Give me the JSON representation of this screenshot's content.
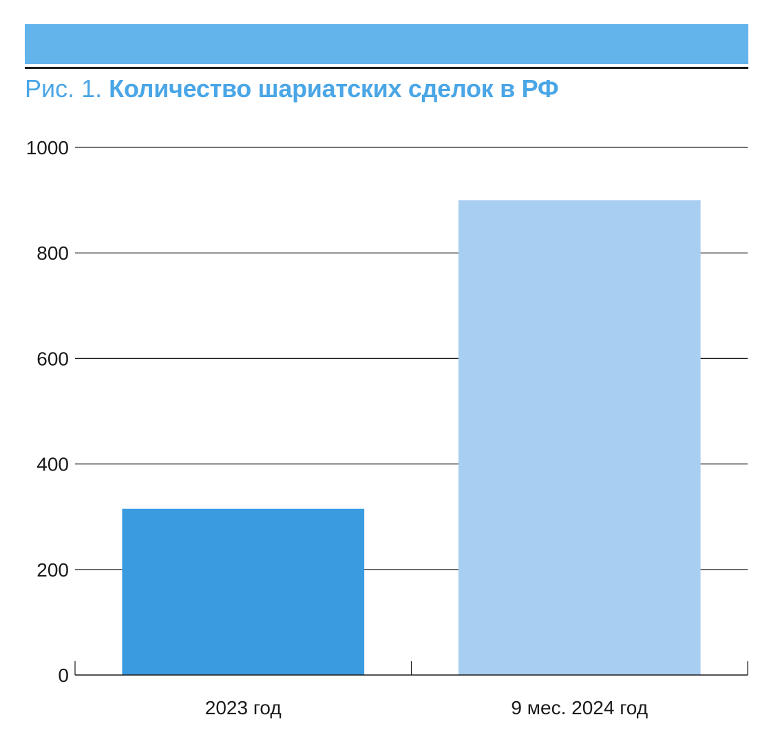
{
  "figure": {
    "caption_prefix": "Рис. 1.",
    "caption_title": "Количество шариатских сделок в РФ"
  },
  "colors": {
    "band": "#64b4ec",
    "caption": "#4aa6e6",
    "bars": [
      "#3a9be0",
      "#a8cef2"
    ],
    "grid": "#1a1a1a"
  },
  "chart_data": {
    "type": "bar",
    "categories": [
      "2023 год",
      "9 мес. 2024 год"
    ],
    "values": [
      315,
      900
    ],
    "ylim": [
      0,
      1000
    ],
    "yticks": [
      0,
      200,
      400,
      600,
      800,
      1000
    ],
    "xlabel": "",
    "ylabel": "",
    "grid": true
  }
}
